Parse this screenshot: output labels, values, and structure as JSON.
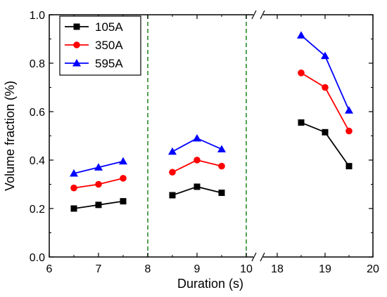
{
  "chart_data": {
    "type": "line",
    "xlabel": "Duration (s)",
    "ylabel": "Volume fraction (%)",
    "ylim": [
      0.0,
      1.0
    ],
    "x_axis_break": "between 10 and 18",
    "x_tick_labels": [
      "6",
      "7",
      "8",
      "9",
      "10",
      "18",
      "19",
      "20"
    ],
    "y_tick_labels": [
      "0.0",
      "0.2",
      "0.4",
      "0.6",
      "0.8",
      "1.0"
    ],
    "vertical_dashed_lines_at": [
      8,
      10
    ],
    "legend_position": "top-left",
    "series": [
      {
        "name": "105A",
        "color": "#000000",
        "marker": "square",
        "segments": [
          [
            [
              6.5,
              0.2
            ],
            [
              7.0,
              0.215
            ],
            [
              7.5,
              0.23
            ]
          ],
          [
            [
              8.5,
              0.255
            ],
            [
              9.0,
              0.29
            ],
            [
              9.5,
              0.265
            ]
          ],
          [
            [
              18.5,
              0.555
            ],
            [
              19.0,
              0.515
            ],
            [
              19.5,
              0.375
            ]
          ]
        ]
      },
      {
        "name": "350A",
        "color": "#ff0000",
        "marker": "circle",
        "segments": [
          [
            [
              6.5,
              0.285
            ],
            [
              7.0,
              0.3
            ],
            [
              7.5,
              0.325
            ]
          ],
          [
            [
              8.5,
              0.35
            ],
            [
              9.0,
              0.4
            ],
            [
              9.5,
              0.375
            ]
          ],
          [
            [
              18.5,
              0.76
            ],
            [
              19.0,
              0.7
            ],
            [
              19.5,
              0.52
            ]
          ]
        ]
      },
      {
        "name": "595A",
        "color": "#0000ff",
        "marker": "triangle",
        "segments": [
          [
            [
              6.5,
              0.345
            ],
            [
              7.0,
              0.37
            ],
            [
              7.5,
              0.395
            ]
          ],
          [
            [
              8.5,
              0.435
            ],
            [
              9.0,
              0.49
            ],
            [
              9.5,
              0.445
            ]
          ],
          [
            [
              18.5,
              0.915
            ],
            [
              19.0,
              0.83
            ],
            [
              19.5,
              0.605
            ]
          ]
        ]
      }
    ]
  }
}
